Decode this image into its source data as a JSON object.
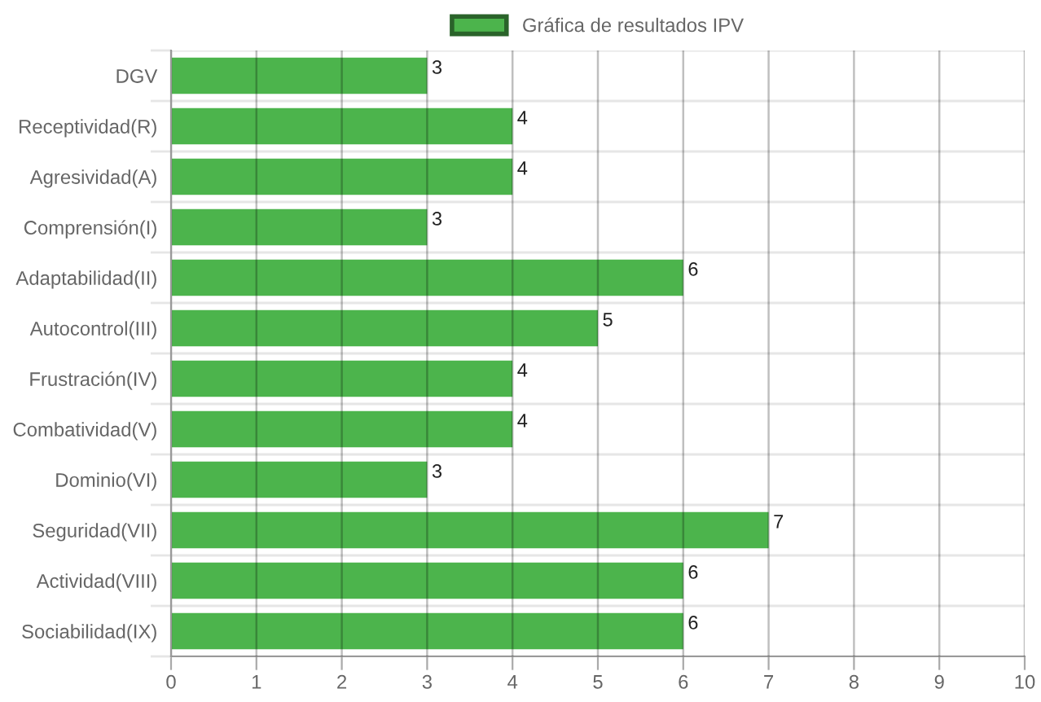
{
  "chart_data": {
    "type": "bar",
    "orientation": "horizontal",
    "categories": [
      "DGV",
      "Receptividad(R)",
      "Agresividad(A)",
      "Comprensión(I)",
      "Adaptabilidad(II)",
      "Autocontrol(III)",
      "Frustración(IV)",
      "Combatividad(V)",
      "Dominio(VI)",
      "Seguridad(VII)",
      "Actividad(VIII)",
      "Sociabilidad(IX)"
    ],
    "series": [
      {
        "name": "Gráfica de resultados IPV",
        "color": "#4cb44c",
        "values": [
          3,
          4,
          4,
          3,
          6,
          5,
          4,
          4,
          3,
          7,
          6,
          6
        ]
      }
    ],
    "xlim": [
      0,
      10
    ],
    "xticks": [
      0,
      1,
      2,
      3,
      4,
      5,
      6,
      7,
      8,
      9,
      10
    ],
    "grid": true,
    "legend": "top",
    "data_labels": true
  }
}
